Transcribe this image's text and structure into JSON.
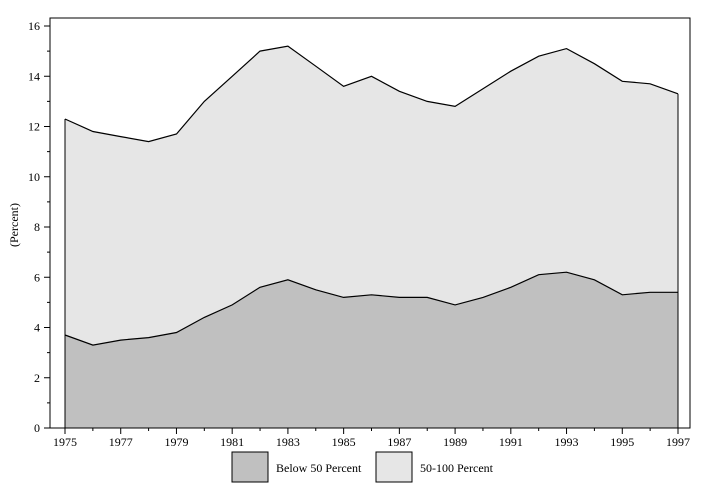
{
  "chart_data": {
    "type": "area",
    "stacked": true,
    "title": "",
    "xlabel": "",
    "ylabel": "(Percent)",
    "ylim": [
      0,
      16
    ],
    "xlim": [
      1975,
      1997
    ],
    "y_ticks": [
      "0",
      "2",
      "4",
      "6",
      "8",
      "10",
      "12",
      "14",
      "16"
    ],
    "x_ticks": [
      "1975",
      "1977",
      "1979",
      "1981",
      "1983",
      "1985",
      "1987",
      "1989",
      "1991",
      "1993",
      "1995",
      "1997"
    ],
    "grid": false,
    "legend_position": "bottom",
    "x": [
      1975,
      1976,
      1977,
      1978,
      1979,
      1980,
      1981,
      1982,
      1983,
      1984,
      1985,
      1986,
      1987,
      1988,
      1989,
      1990,
      1991,
      1992,
      1993,
      1994,
      1995,
      1996,
      1997
    ],
    "series": [
      {
        "name": "Below 50 Percent",
        "color": "#c0c0c0",
        "values": [
          3.7,
          3.3,
          3.5,
          3.6,
          3.8,
          4.4,
          4.9,
          5.6,
          5.9,
          5.5,
          5.2,
          5.3,
          5.2,
          5.2,
          4.9,
          5.2,
          5.6,
          6.1,
          6.2,
          5.9,
          5.3,
          5.4,
          5.4
        ]
      },
      {
        "name": "50-100 Percent",
        "color": "#e6e6e6",
        "values": [
          8.6,
          8.5,
          8.1,
          7.8,
          7.9,
          8.6,
          9.1,
          9.4,
          9.3,
          8.9,
          8.4,
          8.7,
          8.2,
          7.8,
          7.9,
          8.3,
          8.6,
          8.7,
          8.9,
          8.6,
          8.5,
          8.3,
          7.9
        ]
      }
    ]
  }
}
